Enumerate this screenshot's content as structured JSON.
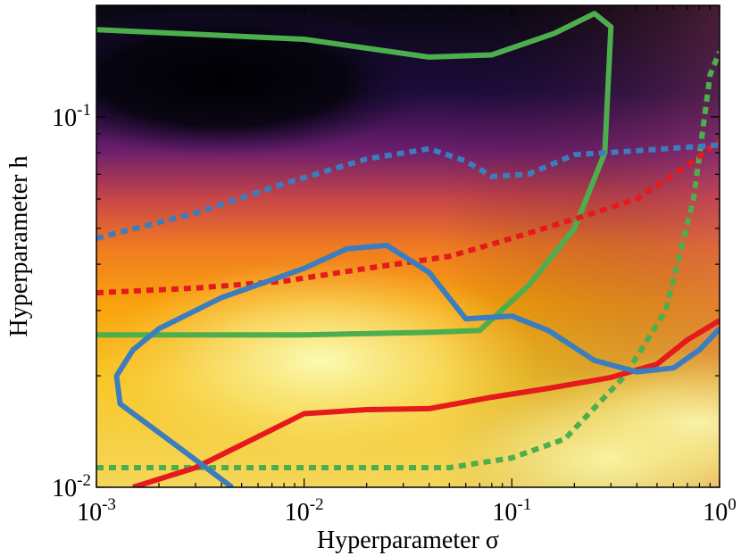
{
  "chart_data": {
    "type": "heatmap",
    "xlabel": "Hyperparameter σ",
    "ylabel": "Hyperparameter h",
    "xscale": "log",
    "yscale": "log",
    "xlim": [
      0.001,
      1
    ],
    "ylim": [
      0.01,
      0.2
    ],
    "x_ticks": [
      {
        "value": 0.001,
        "base": "10",
        "exp": "-3"
      },
      {
        "value": 0.01,
        "base": "10",
        "exp": "-2"
      },
      {
        "value": 0.1,
        "base": "10",
        "exp": "-1"
      },
      {
        "value": 1,
        "base": "10",
        "exp": "0"
      }
    ],
    "y_ticks": [
      {
        "value": 0.01,
        "base": "10",
        "exp": "-2"
      },
      {
        "value": 0.1,
        "base": "10",
        "exp": "-1"
      }
    ],
    "colormap": "inferno",
    "grid": false,
    "legend": "none",
    "heatmap_blobs": [
      {
        "x": 0.012,
        "y": 0.022,
        "level": 1.0,
        "spread": 0.35
      },
      {
        "x": 0.3,
        "y": 0.012,
        "level": 0.95,
        "spread": 0.3
      },
      {
        "x": 0.8,
        "y": 0.015,
        "level": 0.85,
        "spread": 0.25
      }
    ],
    "series": [
      {
        "color": "#4cae4c",
        "style": "solid",
        "closed": false,
        "points": [
          [
            0.001,
            0.172
          ],
          [
            0.01,
            0.162
          ],
          [
            0.04,
            0.145
          ],
          [
            0.08,
            0.147
          ],
          [
            0.16,
            0.168
          ],
          [
            0.25,
            0.19
          ],
          [
            0.3,
            0.175
          ],
          [
            0.28,
            0.08
          ],
          [
            0.2,
            0.05
          ],
          [
            0.12,
            0.035
          ],
          [
            0.07,
            0.0265
          ],
          [
            0.04,
            0.0262
          ],
          [
            0.01,
            0.0258
          ],
          [
            0.001,
            0.0258
          ]
        ]
      },
      {
        "color": "#4cae4c",
        "style": "dotted",
        "closed": false,
        "points": [
          [
            0.001,
            0.0113
          ],
          [
            0.01,
            0.0113
          ],
          [
            0.05,
            0.0113
          ],
          [
            0.1,
            0.012
          ],
          [
            0.18,
            0.0135
          ],
          [
            0.35,
            0.02
          ],
          [
            0.55,
            0.03
          ],
          [
            0.75,
            0.06
          ],
          [
            0.9,
            0.13
          ],
          [
            1.0,
            0.15
          ]
        ]
      },
      {
        "color": "#e41a1c",
        "style": "solid",
        "closed": false,
        "points": [
          [
            0.0015,
            0.01
          ],
          [
            0.003,
            0.0113
          ],
          [
            0.006,
            0.0137
          ],
          [
            0.01,
            0.0158
          ],
          [
            0.02,
            0.0162
          ],
          [
            0.04,
            0.0163
          ],
          [
            0.08,
            0.0175
          ],
          [
            0.15,
            0.0185
          ],
          [
            0.3,
            0.0198
          ],
          [
            0.5,
            0.0215
          ],
          [
            0.7,
            0.025
          ],
          [
            1.0,
            0.0282
          ]
        ]
      },
      {
        "color": "#e41a1c",
        "style": "dotted",
        "closed": false,
        "points": [
          [
            0.001,
            0.0335
          ],
          [
            0.003,
            0.0345
          ],
          [
            0.008,
            0.036
          ],
          [
            0.02,
            0.039
          ],
          [
            0.05,
            0.042
          ],
          [
            0.1,
            0.047
          ],
          [
            0.2,
            0.053
          ],
          [
            0.4,
            0.06
          ],
          [
            0.7,
            0.074
          ],
          [
            1.0,
            0.086
          ]
        ]
      },
      {
        "color": "#3b7dbf",
        "style": "solid",
        "closed": false,
        "points": [
          [
            0.0045,
            0.01
          ],
          [
            0.0025,
            0.0128
          ],
          [
            0.0013,
            0.0168
          ],
          [
            0.00125,
            0.02
          ],
          [
            0.0015,
            0.0235
          ],
          [
            0.002,
            0.0268
          ],
          [
            0.004,
            0.0325
          ],
          [
            0.01,
            0.039
          ],
          [
            0.016,
            0.044
          ],
          [
            0.025,
            0.045
          ],
          [
            0.04,
            0.038
          ],
          [
            0.06,
            0.0285
          ],
          [
            0.1,
            0.029
          ],
          [
            0.15,
            0.0265
          ],
          [
            0.25,
            0.022
          ],
          [
            0.4,
            0.0205
          ],
          [
            0.6,
            0.021
          ],
          [
            0.8,
            0.0235
          ],
          [
            1.0,
            0.0268
          ]
        ]
      },
      {
        "color": "#3b7dbf",
        "style": "dotted",
        "closed": false,
        "points": [
          [
            0.001,
            0.047
          ],
          [
            0.003,
            0.055
          ],
          [
            0.008,
            0.066
          ],
          [
            0.02,
            0.077
          ],
          [
            0.04,
            0.082
          ],
          [
            0.06,
            0.076
          ],
          [
            0.08,
            0.069
          ],
          [
            0.12,
            0.07
          ],
          [
            0.2,
            0.079
          ],
          [
            0.4,
            0.081
          ],
          [
            1.0,
            0.084
          ]
        ]
      }
    ]
  }
}
